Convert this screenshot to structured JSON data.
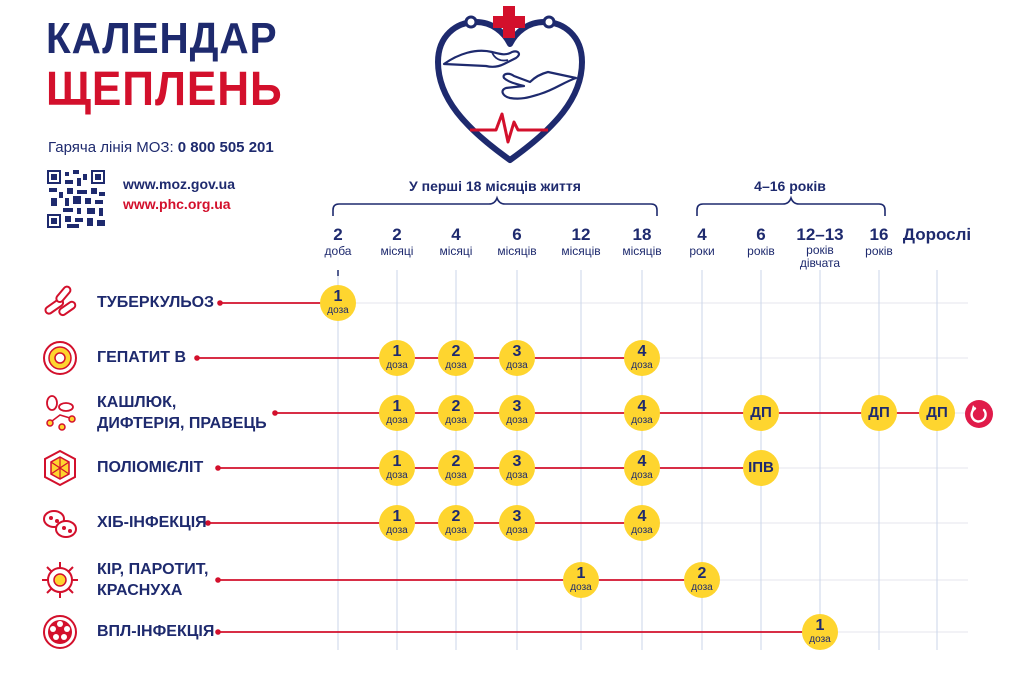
{
  "header": {
    "title_line1": "КАЛЕНДАР",
    "title_line2": "ЩЕПЛЕНЬ",
    "hotline_label": "Гаряча лінія МОЗ:",
    "hotline_number": "0 800 505 201",
    "url_moz": "www.moz.gov.ua",
    "url_phc": "www.phc.org.ua"
  },
  "colors": {
    "navy": "#1e2a6e",
    "red": "#d3102c",
    "yellow": "#fed52f",
    "pink": "#e01b4a"
  },
  "groups": {
    "first": "У перші 18 місяців життя",
    "second": "4–16 років"
  },
  "columns": [
    {
      "n": "2",
      "u": "доба"
    },
    {
      "n": "2",
      "u": "місяці"
    },
    {
      "n": "4",
      "u": "місяці"
    },
    {
      "n": "6",
      "u": "місяців"
    },
    {
      "n": "12",
      "u": "місяців"
    },
    {
      "n": "18",
      "u": "місяців"
    },
    {
      "n": "4",
      "u": "роки"
    },
    {
      "n": "6",
      "u": "років"
    },
    {
      "n": "12–13",
      "u": "років дівчата"
    },
    {
      "n": "16",
      "u": "років"
    },
    {
      "n": "Дорослі",
      "u": ""
    }
  ],
  "diseases": [
    {
      "name": "ТУБЕРКУЛЬОЗ",
      "icon": "tuberculosis-icon",
      "doses": [
        {
          "col": 0,
          "n": "1",
          "u": "доза"
        }
      ]
    },
    {
      "name": "ГЕПАТИТ В",
      "icon": "hepatitis-icon",
      "doses": [
        {
          "col": 1,
          "n": "1",
          "u": "доза"
        },
        {
          "col": 2,
          "n": "2",
          "u": "доза"
        },
        {
          "col": 3,
          "n": "3",
          "u": "доза"
        },
        {
          "col": 5,
          "n": "4",
          "u": "доза"
        }
      ]
    },
    {
      "name": "КАШЛЮК, ДИФТЕРІЯ, ПРАВЕЦЬ",
      "icon": "pertussis-icon",
      "doses": [
        {
          "col": 1,
          "n": "1",
          "u": "доза"
        },
        {
          "col": 2,
          "n": "2",
          "u": "доза"
        },
        {
          "col": 3,
          "n": "3",
          "u": "доза"
        },
        {
          "col": 5,
          "n": "4",
          "u": "доза"
        },
        {
          "col": 7,
          "n": "ДП",
          "u": ""
        },
        {
          "col": 9,
          "n": "ДП",
          "u": ""
        },
        {
          "col": 10,
          "n": "ДП",
          "u": ""
        }
      ],
      "repeat": true
    },
    {
      "name": "ПОЛІОМІЄЛІТ",
      "icon": "polio-icon",
      "doses": [
        {
          "col": 1,
          "n": "1",
          "u": "доза"
        },
        {
          "col": 2,
          "n": "2",
          "u": "доза"
        },
        {
          "col": 3,
          "n": "3",
          "u": "доза"
        },
        {
          "col": 5,
          "n": "4",
          "u": "доза"
        },
        {
          "col": 7,
          "n": "ІПВ",
          "u": ""
        }
      ]
    },
    {
      "name": "ХІБ-ІНФЕКЦІЯ",
      "icon": "hib-icon",
      "doses": [
        {
          "col": 1,
          "n": "1",
          "u": "доза"
        },
        {
          "col": 2,
          "n": "2",
          "u": "доза"
        },
        {
          "col": 3,
          "n": "3",
          "u": "доза"
        },
        {
          "col": 5,
          "n": "4",
          "u": "доза"
        }
      ]
    },
    {
      "name": "КІР, ПАРОТИТ, КРАСНУХА",
      "icon": "measles-icon",
      "doses": [
        {
          "col": 4,
          "n": "1",
          "u": "доза"
        },
        {
          "col": 6,
          "n": "2",
          "u": "доза"
        }
      ]
    },
    {
      "name": "ВПЛ-ІНФЕКЦІЯ",
      "icon": "hpv-icon",
      "doses": [
        {
          "col": 8,
          "n": "1",
          "u": "доза"
        }
      ]
    }
  ]
}
